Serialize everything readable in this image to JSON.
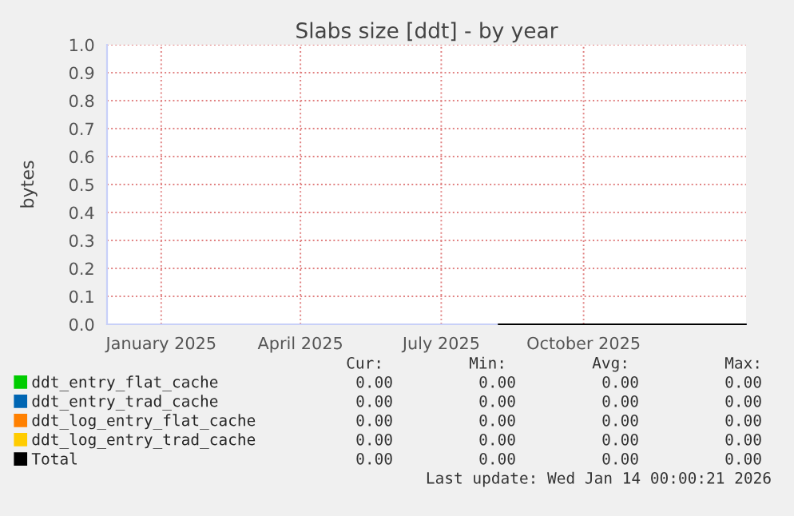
{
  "chart_data": {
    "type": "line",
    "title": "Slabs size [ddt] - by year",
    "ylabel": "bytes",
    "xlim": [
      "2024-11-27",
      "2026-01-14"
    ],
    "xticks": [
      {
        "value": "2025-01-01",
        "label": "January 2025"
      },
      {
        "value": "2025-04-01",
        "label": "April 2025"
      },
      {
        "value": "2025-07-01",
        "label": "July 2025"
      },
      {
        "value": "2025-10-01",
        "label": "October 2025"
      }
    ],
    "ylim": [
      0,
      1.0
    ],
    "yticks": [
      {
        "value": 0,
        "label": "0.0"
      },
      0.1,
      0.2,
      0.3,
      0.4,
      0.5,
      0.6,
      0.7,
      0.8,
      0.9,
      {
        "value": 1.0,
        "label": "1.0"
      }
    ],
    "grid": true,
    "legend": "bottom",
    "marker": "none",
    "line_style": "solid",
    "series": [
      {
        "name": "ddt_entry_flat_cache",
        "color": "#00cc00"
      },
      {
        "name": "ddt_entry_trad_cache",
        "color": "#0066b3"
      },
      {
        "name": "ddt_log_entry_flat_cache",
        "color": "#ff8000"
      },
      {
        "name": "ddt_log_entry_trad_cache",
        "color": "#ffcc00"
      },
      {
        "name": "Total",
        "color": "#000000",
        "x": [
          "2025-08-07",
          "2026-01-14"
        ],
        "values": [
          0,
          0
        ]
      }
    ],
    "annotations": [
      "Cur:",
      "Min:",
      "Avg:",
      "Max:",
      "0.00",
      "0.00",
      "0.00",
      "0.00",
      "0.00",
      "0.00",
      "0.00",
      "0.00",
      "0.00",
      "0.00",
      "0.00",
      "0.00",
      "0.00",
      "0.00",
      "0.00",
      "0.00",
      "0.00",
      "0.00",
      "0.00",
      "0.00",
      "Last update: Wed Jan 14 00:00:21 2026"
    ]
  }
}
